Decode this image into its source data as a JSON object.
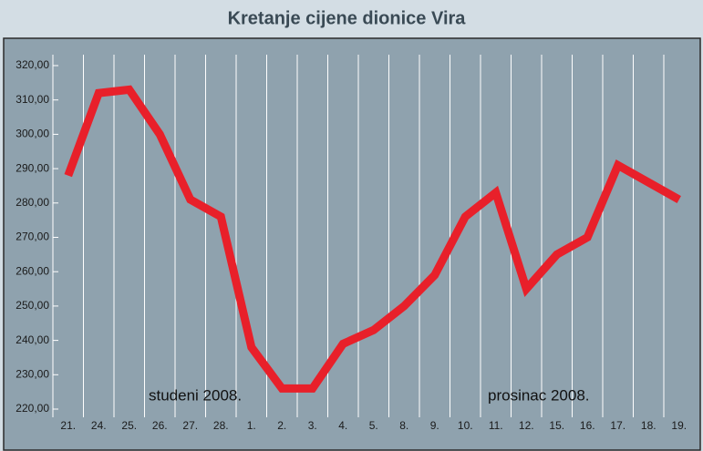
{
  "chart_data": {
    "type": "line",
    "title": "Kretanje cijene dionice Vira",
    "categories": [
      "21.",
      "24.",
      "25.",
      "26.",
      "27.",
      "28.",
      "1.",
      "2.",
      "3.",
      "4.",
      "5.",
      "8.",
      "9.",
      "10.",
      "11.",
      "12.",
      "15.",
      "16.",
      "17.",
      "18.",
      "19."
    ],
    "values": [
      288,
      312,
      313,
      300,
      281,
      276,
      238,
      226,
      226,
      239,
      243,
      250,
      259,
      276,
      283,
      255,
      265,
      270,
      291,
      286,
      281
    ],
    "color": "#e8202a",
    "ylim": [
      220,
      320
    ],
    "yticks": [
      {
        "value": 220,
        "label": "220,00"
      },
      {
        "value": 230,
        "label": "230,00"
      },
      {
        "value": 240,
        "label": "240,00"
      },
      {
        "value": 250,
        "label": "250,00"
      },
      {
        "value": 260,
        "label": "260,00"
      },
      {
        "value": 270,
        "label": "270,00"
      },
      {
        "value": 280,
        "label": "280,00"
      },
      {
        "value": 290,
        "label": "290,00"
      },
      {
        "value": 300,
        "label": "300,00"
      },
      {
        "value": 310,
        "label": "310,00"
      },
      {
        "value": 320,
        "label": "320,00"
      }
    ],
    "grid": true,
    "annotations": [
      "studeni 2008.",
      "prosinac 2008."
    ]
  }
}
